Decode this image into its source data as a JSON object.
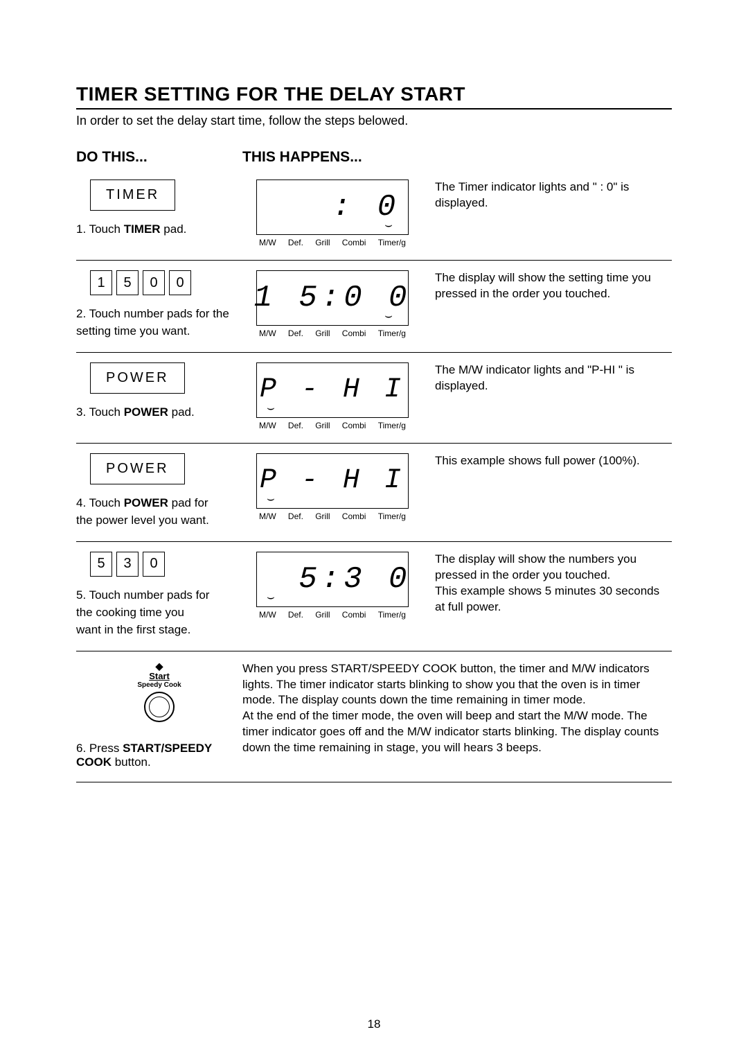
{
  "title": "TIMER SETTING FOR THE DELAY START",
  "intro": "In order to set the delay start time, follow the steps belowed.",
  "headers": {
    "do": "DO THIS...",
    "happens": "THIS HAPPENS..."
  },
  "labels": {
    "mw": "M/W",
    "def": "Def.",
    "grill": "Grill",
    "combi": "Combi",
    "timer": "Timer/g"
  },
  "colors": {
    "text": "#000000",
    "bg": "#ffffff",
    "rule": "#000000"
  },
  "steps": {
    "s1": {
      "button": "TIMER",
      "caption_a": "1. Touch ",
      "caption_b": "TIMER",
      "caption_c": " pad.",
      "seg": "   : 0",
      "indicator_side": "right",
      "explain": "The Timer indicator lights and \"   : 0\" is displayed."
    },
    "s2": {
      "keys": [
        "1",
        "5",
        "0",
        "0"
      ],
      "caption_a": "2. Touch number pads for the",
      "caption_b": "setting time you want.",
      "seg": "1 5:0 0",
      "indicator_side": "right",
      "explain": "The display will show the setting time you pressed in the order you touched."
    },
    "s3": {
      "button": "POWER",
      "caption_a": "3. Touch ",
      "caption_b": "POWER",
      "caption_c": " pad.",
      "seg": "P - H I",
      "indicator_side": "left",
      "explain": "The M/W indicator lights and \"P-HI \" is displayed."
    },
    "s4": {
      "button": "POWER",
      "caption_a": "4. Touch ",
      "caption_b": "POWER",
      "caption_c": " pad for",
      "caption_d": "the power level you want.",
      "seg": "P - H I",
      "indicator_side": "left",
      "explain": "This example shows full power (100%)."
    },
    "s5": {
      "keys": [
        "5",
        "3",
        "0"
      ],
      "caption_a": "5. Touch number pads for",
      "caption_b": "the cooking time you",
      "caption_c": "want in the first stage.",
      "seg": "  5:3 0",
      "indicator_side": "left",
      "explain": "The display will show the numbers you pressed in the order you touched.\nThis example shows 5 minutes 30 seconds at full power."
    },
    "s6": {
      "start_label": "Start",
      "start_sub": "Speedy Cook",
      "caption_a": "6. Press ",
      "caption_b": "START/SPEEDY",
      "caption_c": "COOK",
      "caption_d": " button.",
      "para1": "When you press START/SPEEDY COOK button, the timer and M/W indicators lights. The timer indicator starts blinking to show you that the oven is in timer mode. The display counts down the time remaining in timer mode.",
      "para2": "At the end of the timer mode, the oven will beep and start the M/W mode. The timer indicator goes off and the M/W indicator starts blinking. The display counts down the time remaining in stage, you will hears 3 beeps."
    }
  },
  "page_number": "18"
}
